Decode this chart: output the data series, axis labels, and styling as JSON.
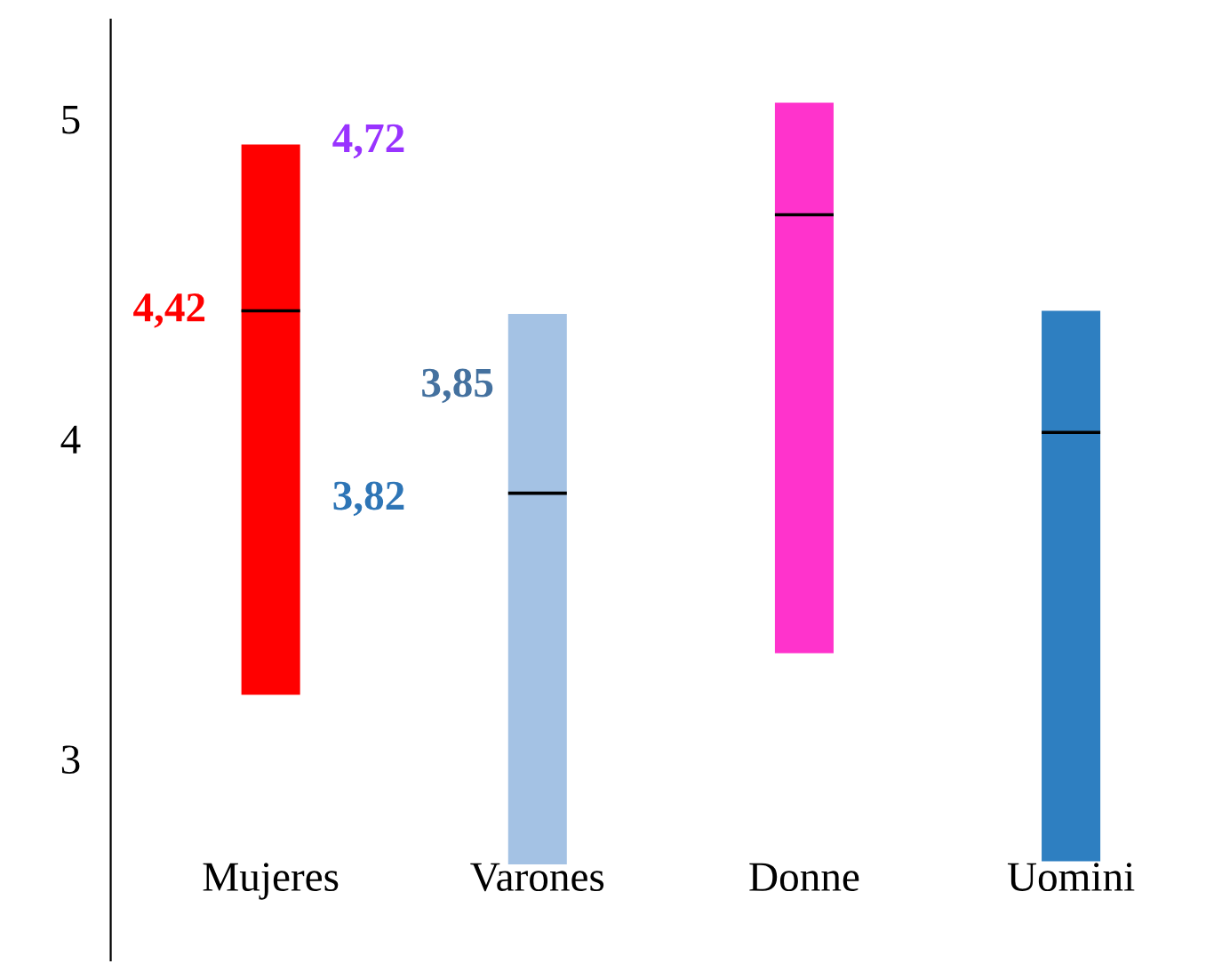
{
  "chart_data": {
    "type": "box",
    "categories": [
      "Mujeres",
      "Varones",
      "Donne",
      "Uomini"
    ],
    "series": [
      {
        "colors": [
          "#ff0000",
          "#a4c2e4",
          "#ff33cc",
          "#2e7fc1"
        ],
        "boxes": [
          {
            "q1": 3.2,
            "median": 4.4,
            "q3": 4.92
          },
          {
            "q1": 2.67,
            "median": 3.83,
            "q3": 4.39
          },
          {
            "q1": 3.33,
            "median": 4.7,
            "q3": 5.05
          },
          {
            "q1": 2.68,
            "median": 4.02,
            "q3": 4.4
          }
        ]
      }
    ],
    "ylim": [
      2.37,
      5.31
    ],
    "yticks": [
      3,
      4,
      5
    ],
    "grid": false,
    "legend": false,
    "annotations": [
      "4,42",
      "3,82",
      "4,72",
      "3,85"
    ]
  }
}
